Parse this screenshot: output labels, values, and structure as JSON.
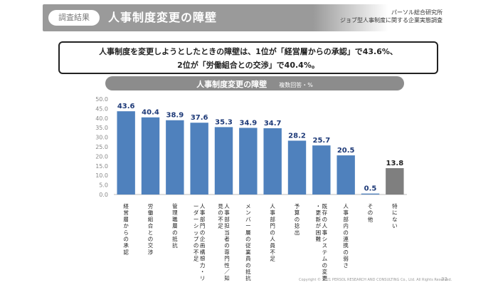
{
  "header": {
    "badge": "調査結果",
    "title": "人事制度変更の障壁",
    "org_line1": "パーソル総合研究所",
    "org_line2": "ジョブ型人事制度に関する企業実態調査"
  },
  "callout": {
    "line1": "人事制度を変更しようとしたときの障壁は、1位が「経営層からの承認」で43.6%、",
    "line2": "2位が「労働組合との交渉」で40.4%。"
  },
  "chart_title": "人事制度変更の障壁",
  "chart_subtitle": "複数回答・%",
  "footer": "Copyright © 2021 PERSOL RESEARCH AND CONSULTING Co., Ltd. All Rights Reserved.",
  "page_number": "33",
  "colors": {
    "bar": "#4f81bd",
    "bar_other": "#7f7f7f",
    "value_label": "#1e3a78"
  },
  "chart_data": {
    "type": "bar",
    "title": "人事制度変更の障壁",
    "subtitle": "複数回答・%",
    "ylim": [
      0,
      50
    ],
    "yticks": [
      "50.0",
      "45.0",
      "40.0",
      "35.0",
      "30.0",
      "25.0",
      "20.0",
      "15.0",
      "10.0",
      "5.0",
      "0.0"
    ],
    "grid": false,
    "categories": [
      "経営層からの承認",
      "労働組合との交渉",
      "管理職層の抵抗",
      "人事部門の企画構想力・リーダーシップの不足",
      "人事部担当者の専門性／知見の不足",
      "メンバー層の従業員の抵抗",
      "人事部門の人員不足",
      "予算の捻出",
      "既存の人事システムの変更・更新が困難",
      "人事部内の連携の弱さ",
      "その他",
      "特にない"
    ],
    "values": [
      43.6,
      40.4,
      38.9,
      37.6,
      35.3,
      34.9,
      34.7,
      28.2,
      25.7,
      20.5,
      0.5,
      13.8
    ],
    "value_labels": [
      "43.6",
      "40.4",
      "38.9",
      "37.6",
      "35.3",
      "34.9",
      "34.7",
      "28.2",
      "25.7",
      "20.5",
      "0.5",
      "13.8"
    ]
  }
}
